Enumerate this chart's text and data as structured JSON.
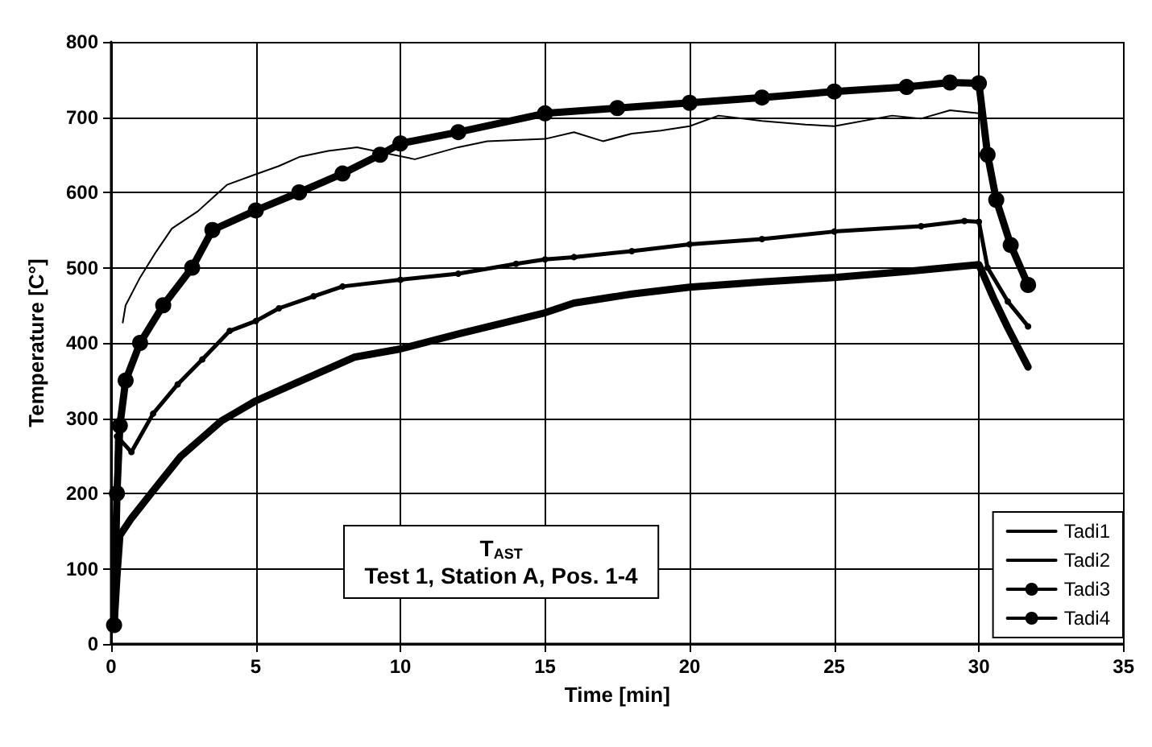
{
  "chart_data": {
    "type": "line",
    "xlabel": "Time [min]",
    "ylabel": "Temperature [C°]",
    "xlim": [
      0,
      35
    ],
    "xticks": [
      0,
      5,
      10,
      15,
      20,
      25,
      30,
      35
    ],
    "ylim": [
      0,
      800
    ],
    "yticks": [
      0,
      100,
      200,
      300,
      400,
      500,
      600,
      700,
      800
    ],
    "grid": true,
    "legend": "bottom right",
    "line_style": "solid",
    "annotations": [
      "T$_{AST}$",
      "Test 1, Station A, Pos. 1-4"
    ],
    "series": [
      {
        "name": "Tadi1",
        "color": "#000000",
        "marker": "none",
        "x": [
          0.4,
          0.5,
          1,
          1.5,
          2.1,
          3,
          4,
          5,
          5.8,
          6.5,
          7.5,
          8.5,
          10.5,
          12,
          13,
          15,
          16,
          17,
          18,
          19,
          20,
          21,
          22.5,
          24,
          25,
          27,
          28,
          29,
          30
        ],
        "values": [
          427,
          450,
          487,
          518,
          552,
          575,
          610,
          624,
          635,
          647,
          655,
          660,
          644,
          660,
          668,
          671,
          680,
          668,
          678,
          682,
          688,
          702,
          695,
          690,
          688,
          702,
          698,
          709,
          705
        ]
      },
      {
        "name": "Tadi2",
        "color": "#000000",
        "marker": "none",
        "x": [
          0.1,
          0.2,
          0.3,
          0.7,
          1.4,
          2.4,
          3.8,
          5,
          6.4,
          8.4,
          10,
          12,
          15,
          16,
          18,
          20,
          22.5,
          25,
          27.5,
          30,
          30.5,
          31,
          31.7
        ],
        "values": [
          25,
          90,
          144,
          167,
          201,
          249,
          296,
          323,
          347,
          381,
          392,
          412,
          440,
          453,
          465,
          474,
          481,
          487,
          495,
          504,
          460,
          420,
          368
        ]
      },
      {
        "name": "Tadi3",
        "color": "#000000",
        "marker": "circle",
        "x": [
          0.1,
          0.2,
          0.7,
          1.45,
          2.3,
          3.15,
          4.1,
          5,
          5.8,
          7,
          8,
          10,
          12,
          14,
          15,
          16,
          18,
          20,
          22.5,
          25,
          28,
          29.5,
          30,
          30.3,
          31,
          31.7
        ],
        "values": [
          25,
          276,
          255,
          306,
          345,
          378,
          416,
          429,
          446,
          462,
          475,
          484,
          492,
          505,
          511,
          514,
          522,
          531,
          538,
          548,
          555,
          562,
          561,
          500,
          455,
          422
        ]
      },
      {
        "name": "Tadi4",
        "color": "#000000",
        "marker": "circle",
        "x": [
          0.1,
          0.2,
          0.3,
          0.5,
          1,
          1.8,
          2.8,
          3.5,
          5,
          6.5,
          8,
          9.3,
          10,
          12,
          15,
          17.5,
          20,
          22.5,
          25,
          27.5,
          29,
          30,
          30.3,
          30.6,
          31.1,
          31.7
        ],
        "values": [
          25,
          200,
          290,
          350,
          400,
          450,
          500,
          550,
          576,
          600,
          625,
          650,
          665,
          680,
          705,
          712,
          719,
          726,
          734,
          740,
          746,
          745,
          650,
          590,
          530,
          477
        ]
      }
    ]
  }
}
